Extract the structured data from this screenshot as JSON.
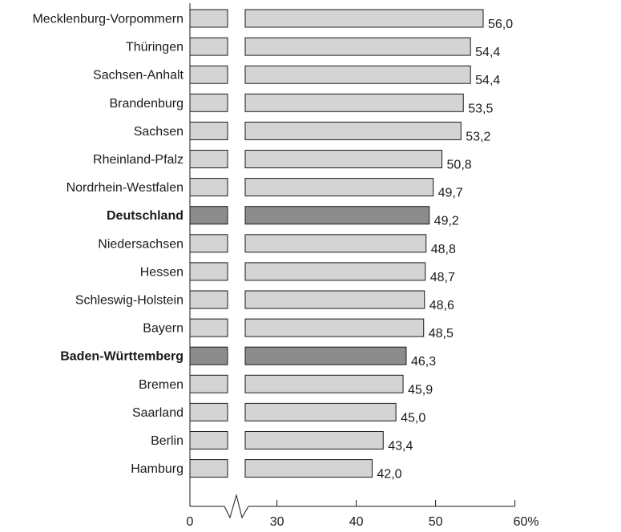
{
  "chart_data": {
    "type": "bar",
    "orientation": "horizontal",
    "axis_break": true,
    "categories": [
      "Mecklenburg-Vorpommern",
      "Thüringen",
      "Sachsen-Anhalt",
      "Brandenburg",
      "Sachsen",
      "Rheinland-Pfalz",
      "Nordrhein-Westfalen",
      "Deutschland",
      "Niedersachsen",
      "Hessen",
      "Schleswig-Holstein",
      "Bayern",
      "Baden-Württemberg",
      "Bremen",
      "Saarland",
      "Berlin",
      "Hamburg"
    ],
    "values": [
      56.0,
      54.4,
      54.4,
      53.5,
      53.2,
      50.8,
      49.7,
      49.2,
      48.8,
      48.7,
      48.6,
      48.5,
      46.3,
      45.9,
      45.0,
      43.4,
      42.0
    ],
    "value_labels": [
      "56,0",
      "54,4",
      "54,4",
      "53,5",
      "53,2",
      "50,8",
      "49,7",
      "49,2",
      "48,8",
      "48,7",
      "48,6",
      "48,5",
      "46,3",
      "45,9",
      "45,0",
      "43,4",
      "42,0"
    ],
    "highlighted": [
      "Deutschland",
      "Baden-Württemberg"
    ],
    "xlim": [
      0,
      60
    ],
    "x_ticks": [
      0,
      30,
      40,
      50,
      60
    ],
    "x_tick_labels": [
      "0",
      "30",
      "40",
      "50",
      "60%"
    ],
    "grid": false,
    "colors": {
      "bar": "#d4d4d4",
      "bar_highlight": "#8c8c8c",
      "bar_stroke": "#1a1a1a"
    }
  }
}
